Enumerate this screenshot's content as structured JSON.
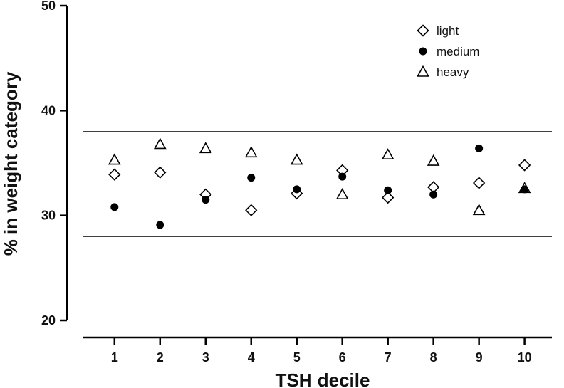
{
  "chart_data": {
    "type": "scatter",
    "title": "",
    "xlabel": "TSH decile",
    "ylabel": "% in weight category",
    "xlim": [
      0.3,
      10.6
    ],
    "ylim": [
      20,
      50
    ],
    "x_ticks": [
      1,
      2,
      3,
      4,
      5,
      6,
      7,
      8,
      9,
      10
    ],
    "y_ticks": [
      20,
      30,
      40,
      50
    ],
    "grid": false,
    "legend_position": "top-right",
    "reference_lines": [
      28,
      38
    ],
    "series": [
      {
        "name": "light",
        "marker": "open-diamond",
        "x": [
          1,
          2,
          3,
          4,
          5,
          6,
          7,
          8,
          9,
          10
        ],
        "y": [
          33.9,
          34.1,
          32.0,
          30.5,
          32.1,
          34.3,
          31.7,
          32.7,
          33.1,
          34.8
        ]
      },
      {
        "name": "medium",
        "marker": "filled-circle",
        "x": [
          1,
          2,
          3,
          4,
          5,
          6,
          7,
          8,
          9,
          10
        ],
        "y": [
          30.8,
          29.1,
          31.5,
          33.6,
          32.5,
          33.7,
          32.4,
          32.0,
          36.4,
          32.5
        ]
      },
      {
        "name": "heavy",
        "marker": "open-triangle",
        "x": [
          1,
          2,
          3,
          4,
          5,
          6,
          7,
          8,
          9,
          10
        ],
        "y": [
          35.3,
          36.8,
          36.4,
          36.0,
          35.3,
          32.0,
          35.8,
          35.2,
          30.5,
          32.6
        ]
      }
    ]
  }
}
